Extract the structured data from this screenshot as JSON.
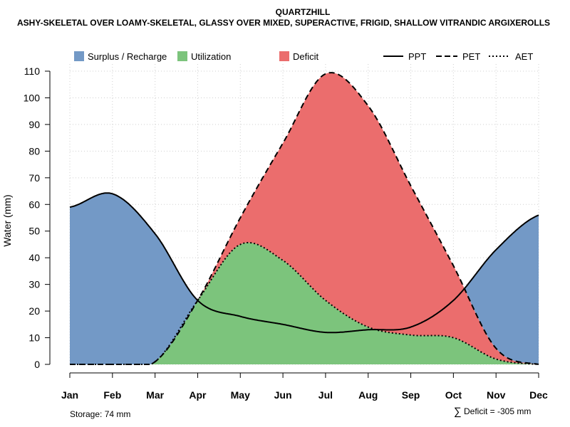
{
  "chart_data": {
    "type": "area",
    "title": "QUARTZHILL",
    "subtitle": "ASHY-SKELETAL OVER LOAMY-SKELETAL, GLASSY OVER MIXED, SUPERACTIVE, FRIGID, SHALLOW VITRANDIC ARGIXEROLLS",
    "xlabel": "",
    "ylabel": "Water (mm)",
    "ylim": [
      0,
      110
    ],
    "yticks": [
      0,
      10,
      20,
      30,
      40,
      50,
      60,
      70,
      80,
      90,
      100,
      110
    ],
    "grid": true,
    "categories": [
      "Jan",
      "Feb",
      "Mar",
      "Apr",
      "May",
      "Jun",
      "Jul",
      "Aug",
      "Sep",
      "Oct",
      "Nov",
      "Dec"
    ],
    "series": [
      {
        "name": "PPT",
        "style": "solid",
        "values": [
          59,
          64,
          49,
          24,
          18,
          15,
          12,
          13,
          14,
          24,
          43,
          56
        ]
      },
      {
        "name": "PET",
        "style": "dashed",
        "values": [
          0,
          0,
          1,
          24,
          55,
          83,
          109,
          97,
          67,
          37,
          6,
          0
        ]
      },
      {
        "name": "AET",
        "style": "dotted",
        "values": [
          0,
          0,
          1,
          24,
          45,
          39,
          24,
          14,
          11,
          10,
          2,
          0
        ]
      }
    ],
    "legend": {
      "position": "top",
      "fill_entries": [
        {
          "label": "Surplus / Recharge",
          "color": "#7399C6"
        },
        {
          "label": "Utilization",
          "color": "#7CC47C"
        },
        {
          "label": "Deficit",
          "color": "#EB6D6D"
        }
      ],
      "line_entries": [
        {
          "label": "PPT",
          "style": "solid"
        },
        {
          "label": "PET",
          "style": "dashed"
        },
        {
          "label": "AET",
          "style": "dotted"
        }
      ]
    },
    "annotations": {
      "storage": "Storage: 74 mm",
      "deficit_symbol": "∑",
      "deficit": "Deficit = -305 mm"
    }
  }
}
